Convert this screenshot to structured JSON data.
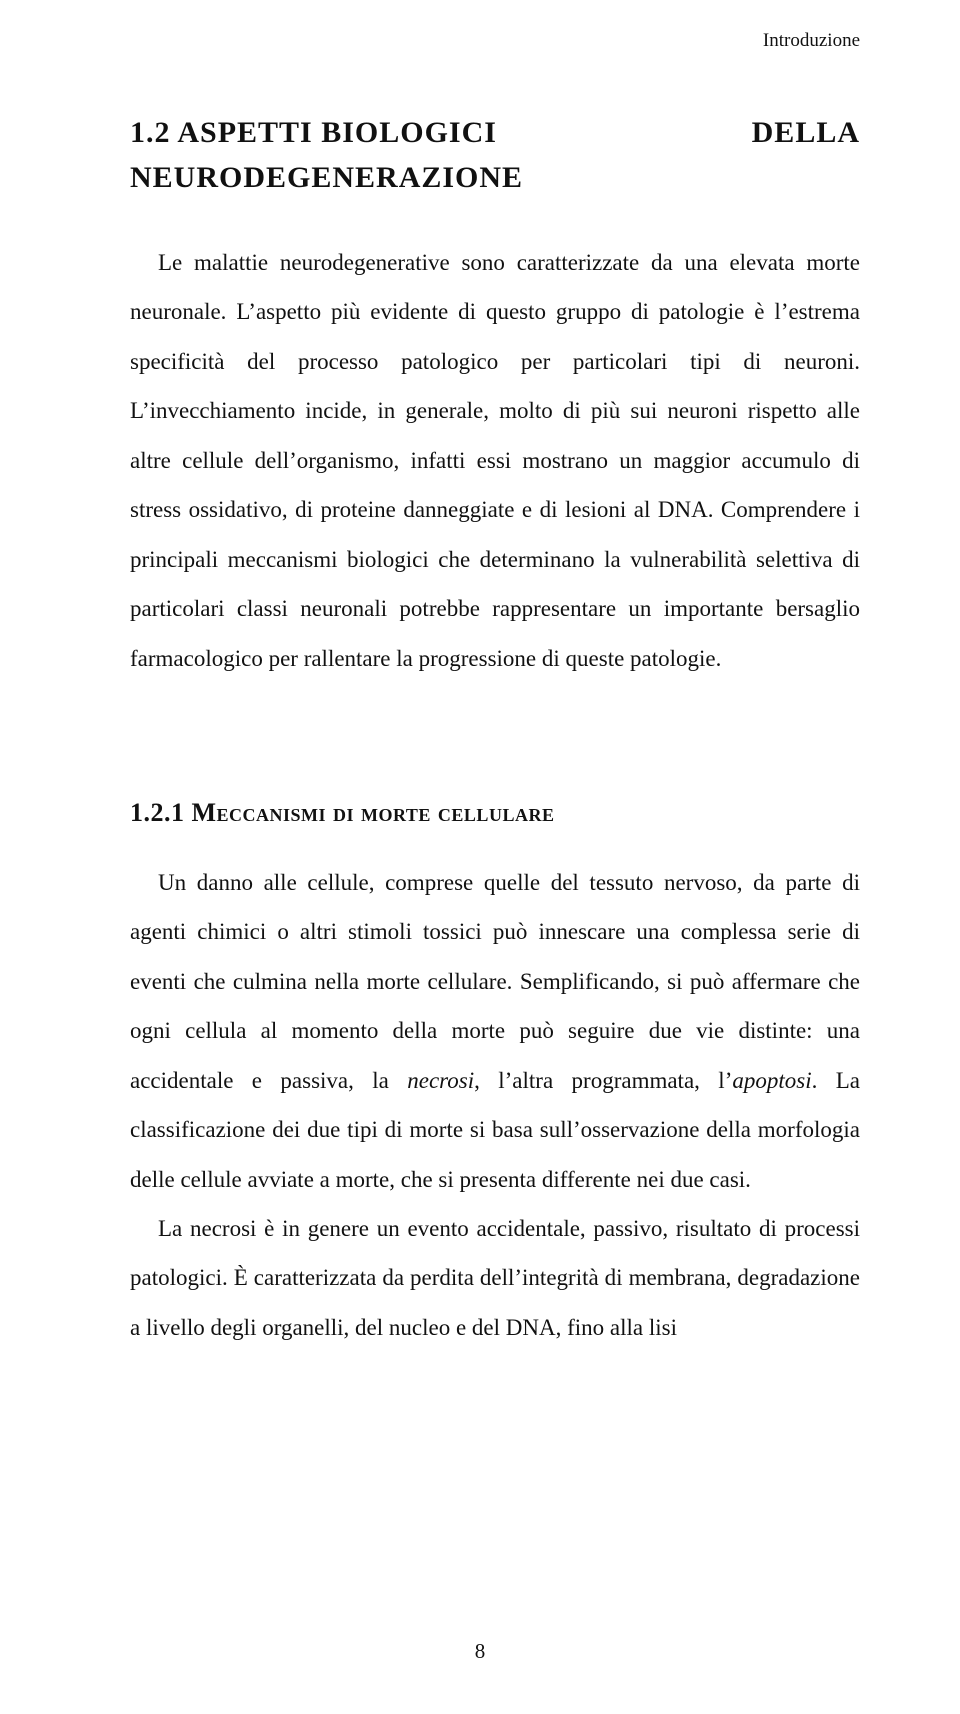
{
  "typography": {
    "body_font_family": "Times New Roman",
    "body_font_size_pt": 16,
    "heading_font_family": "Copperplate",
    "heading_section_font_size_pt": 22,
    "heading_subsection_font_size_pt": 19,
    "line_height": 2.15,
    "text_color": "#111111",
    "background_color": "#ffffff"
  },
  "header": {
    "running": "Introduzione"
  },
  "section": {
    "number": "1.2",
    "title_line1_left": "1.2   ASPETTI   BIOLOGICI",
    "title_line1_right": "DELLA",
    "title_line2": "NEURODEGENERAZIONE"
  },
  "p1": "Le malattie neurodegenerative sono caratterizzate da una elevata morte neuronale. L’aspetto più evidente di questo gruppo di patologie è l’estrema specificità del processo patologico per particolari tipi di neuroni. L’invecchiamento incide, in generale, molto di più sui neuroni rispetto alle altre cellule dell’organismo, infatti essi mostrano un maggior accumulo di stress ossidativo, di proteine danneggiate e di lesioni al DNA. Comprendere i principali meccanismi biologici che determinano la vulnerabilità selettiva di particolari classi neuronali potrebbe rappresentare un importante bersaglio farmacologico per rallentare la progressione di queste patologie.",
  "subsection": {
    "title": "1.2.1 Meccanismi di morte cellulare"
  },
  "p2": "Un danno alle cellule, comprese quelle del tessuto nervoso, da parte di agenti chimici o altri stimoli tossici può innescare una complessa serie di eventi che culmina nella morte cellulare. Semplificando, si può affermare che ogni cellula al momento della morte può seguire due vie distinte: una accidentale e passiva, la necrosi, l’altra programmata, l’apoptosi. La classificazione dei due tipi di morte si basa sull’osservazione della morfologia delle cellule avviate a morte, che si presenta differente nei due casi.",
  "p3": "La necrosi è in genere un evento accidentale, passivo, risultato di processi patologici. È caratterizzata da perdita dell’integrità di membrana, degradazione a livello degli organelli, del nucleo e del DNA, fino alla lisi",
  "italic_terms": {
    "necrosi": "necrosi",
    "apoptosi": "apoptosi"
  },
  "page_number": "8"
}
